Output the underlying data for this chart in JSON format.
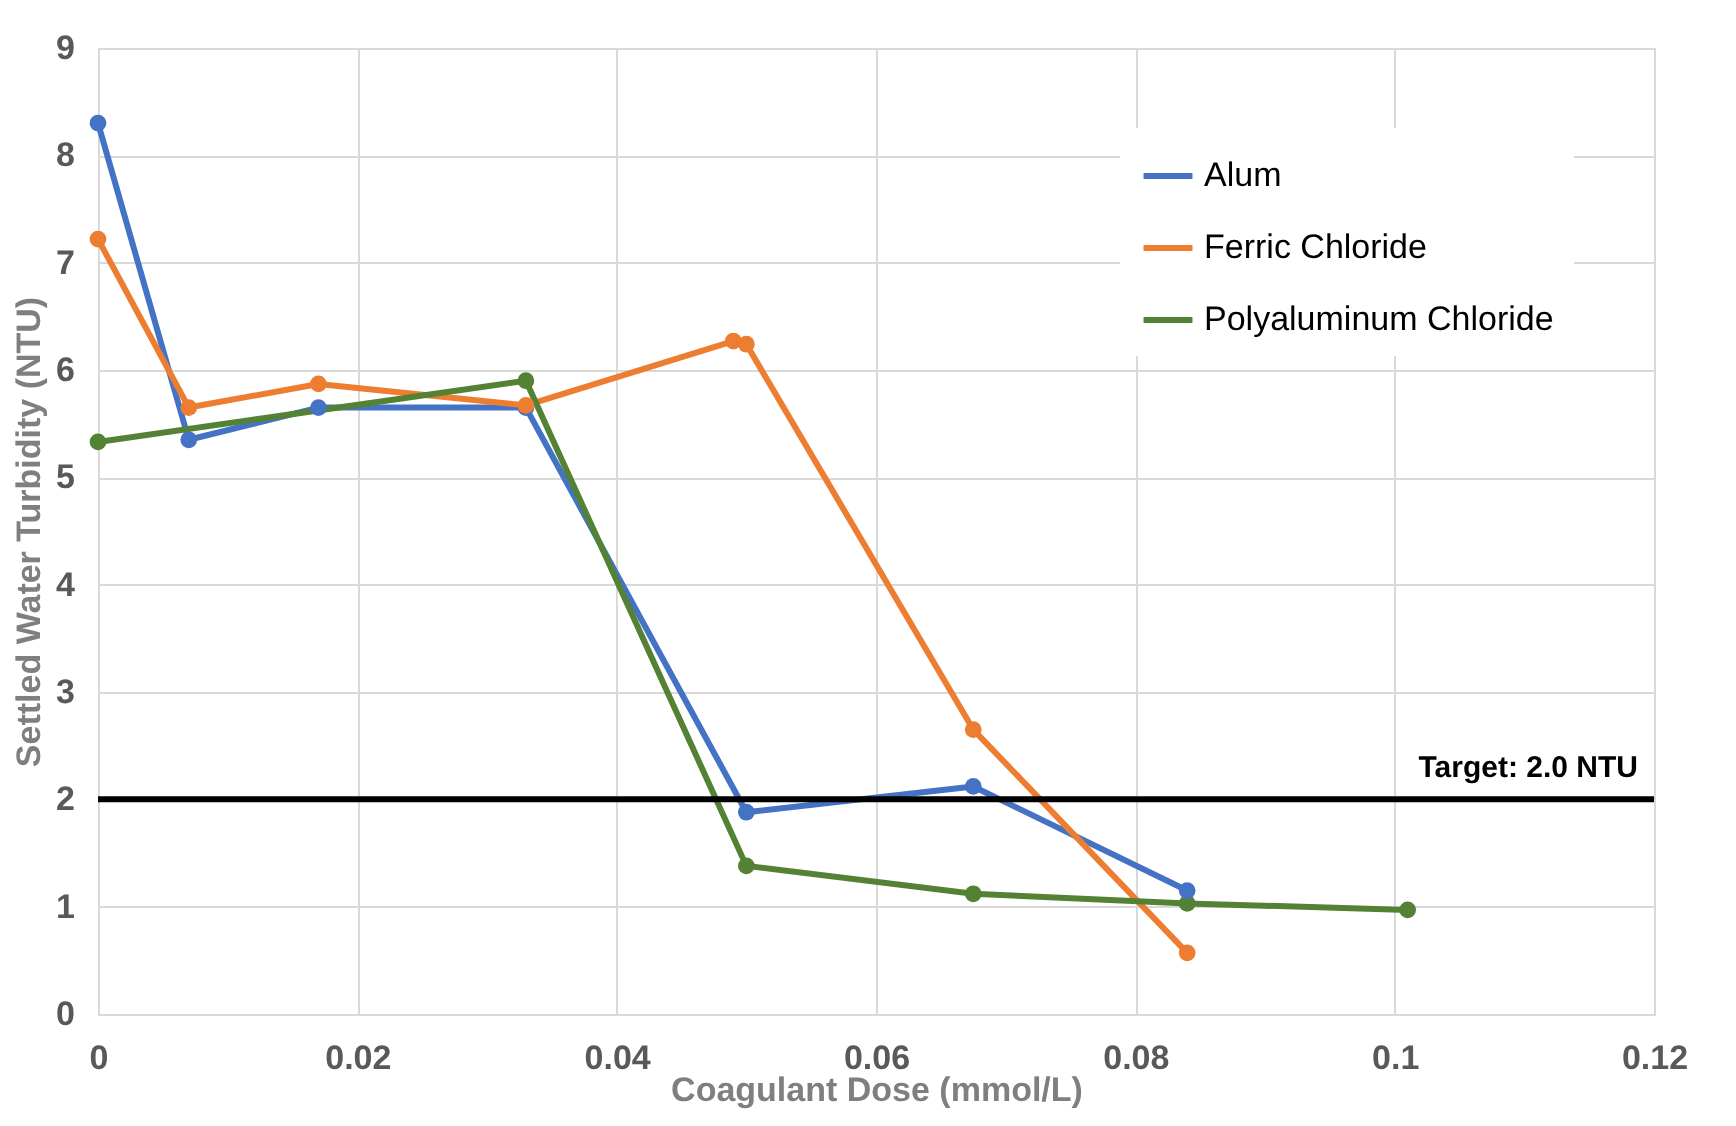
{
  "chart_data": {
    "type": "line",
    "xlabel": "Coagulant Dose (mmol/L)",
    "ylabel": "Settled Water Turbidity  (NTU)",
    "xlim": [
      0,
      0.12
    ],
    "xticks": [
      0,
      0.02,
      0.04,
      0.06,
      0.08,
      0.1,
      0.12
    ],
    "ylim": [
      0,
      9
    ],
    "yticks": [
      0,
      1,
      2,
      3,
      4,
      5,
      6,
      7,
      8,
      9
    ],
    "grid": true,
    "legend": "top right",
    "marker": "circle",
    "line_style": "solid",
    "series": [
      {
        "name": "Alum",
        "color": "#4472c4",
        "x": [
          0,
          0.007,
          0.017,
          0.033,
          0.05,
          0.0675,
          0.084
        ],
        "values": [
          8.3,
          5.35,
          5.65,
          5.65,
          1.88,
          2.12,
          1.15
        ]
      },
      {
        "name": "Ferric Chloride",
        "color": "#ed7d31",
        "x": [
          0,
          0.007,
          0.017,
          0.033,
          0.049,
          0.05,
          0.0675,
          0.084
        ],
        "values": [
          7.22,
          5.65,
          5.87,
          5.67,
          6.27,
          6.24,
          2.65,
          0.57
        ]
      },
      {
        "name": "Polyaluminum Chloride",
        "color": "#548235",
        "x": [
          0,
          0.033,
          0.05,
          0.0675,
          0.084,
          0.101
        ],
        "values": [
          5.33,
          5.9,
          1.38,
          1.12,
          1.03,
          0.97
        ]
      }
    ],
    "ref_lines": [
      {
        "axis": "y",
        "value": 2,
        "label": "Target: 2.0 NTU",
        "color": "#000000",
        "line_style": "solid"
      }
    ]
  }
}
